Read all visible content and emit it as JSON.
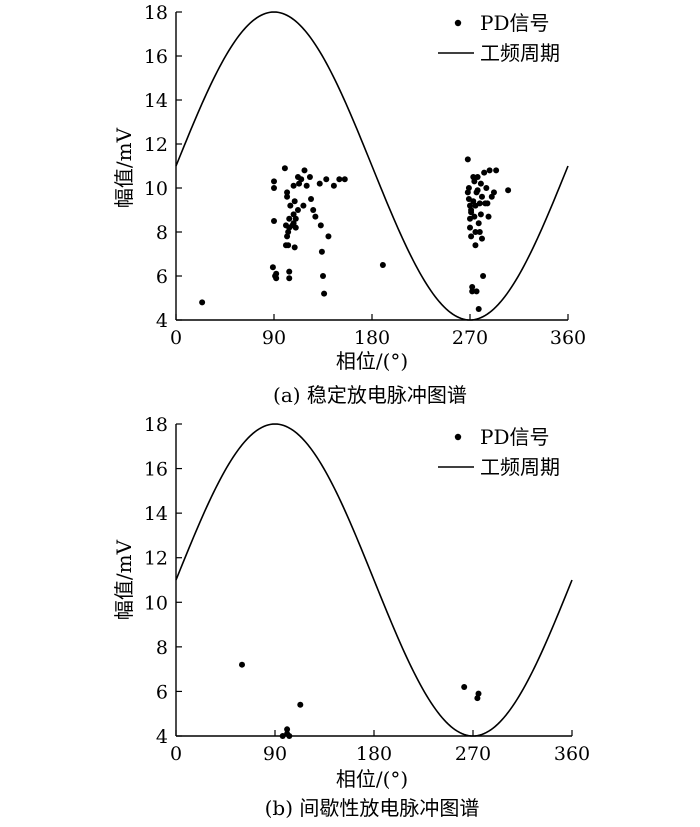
{
  "chart_data": [
    {
      "type": "scatter",
      "caption": "(a)  稳定放电脉冲图谱",
      "xlabel": "相位/(°)",
      "ylabel": "幅值/mV",
      "xlim": [
        0,
        360
      ],
      "ylim": [
        4,
        18
      ],
      "xticks": [
        "0",
        "90",
        "180",
        "270",
        "360"
      ],
      "yticks": [
        "4",
        "6",
        "8",
        "10",
        "12",
        "14",
        "16",
        "18"
      ],
      "legend": {
        "placement": "top-right",
        "items": [
          "PD信号",
          "工频周期"
        ]
      },
      "grid": false,
      "curve": {
        "name": "工频周期",
        "type": "sine",
        "center": 11,
        "amplitude": 7,
        "period": 360
      },
      "series": [
        {
          "name": "PD信号",
          "x": [
            24,
            89,
            90,
            90,
            90,
            91,
            92,
            92,
            100,
            101,
            101,
            102,
            102,
            102,
            103,
            103,
            104,
            104,
            104,
            104,
            105,
            107,
            108,
            108,
            108,
            109,
            109,
            110,
            110,
            112,
            112,
            113,
            115,
            117,
            118,
            120,
            123,
            124,
            126,
            128,
            132,
            133,
            134,
            135,
            136,
            138,
            140,
            145,
            150,
            155,
            190,
            268,
            268,
            269,
            269,
            270,
            270,
            270,
            271,
            271,
            271,
            272,
            272,
            273,
            273,
            274,
            274,
            275,
            275,
            275,
            276,
            276,
            277,
            277,
            278,
            278,
            279,
            279,
            280,
            280,
            281,
            281,
            282,
            283,
            284,
            285,
            286,
            287,
            288,
            290,
            292,
            294,
            305
          ],
          "y": [
            4.8,
            6.4,
            10.3,
            10.0,
            8.5,
            6.0,
            5.9,
            6.1,
            10.9,
            7.4,
            8.3,
            7.8,
            9.8,
            9.6,
            8.0,
            7.4,
            8.6,
            8.2,
            5.9,
            6.2,
            9.2,
            8.3,
            8.4,
            10.1,
            8.8,
            7.3,
            9.4,
            8.2,
            8.6,
            9.0,
            10.5,
            10.2,
            10.4,
            9.2,
            10.8,
            10.1,
            10.5,
            9.5,
            9.0,
            8.7,
            10.2,
            8.3,
            7.1,
            6.0,
            5.2,
            10.4,
            7.8,
            10.1,
            10.4,
            10.4,
            6.5,
            11.3,
            9.8,
            10.0,
            9.5,
            9.2,
            8.6,
            8.2,
            9.0,
            8.9,
            7.8,
            5.5,
            5.3,
            10.5,
            9.4,
            8.7,
            10.3,
            7.4,
            9.2,
            8.0,
            9.8,
            5.3,
            9.9,
            10.5,
            4.5,
            8.4,
            9.3,
            8.0,
            10.2,
            8.8,
            9.6,
            7.7,
            6.0,
            10.7,
            9.3,
            10.0,
            9.3,
            8.7,
            10.8,
            9.6,
            9.8,
            10.8,
            9.9
          ]
        }
      ]
    },
    {
      "type": "scatter",
      "caption": "(b)  间歇性放电脉冲图谱",
      "xlabel": "相位/(°)",
      "ylabel": "幅值/mV",
      "xlim": [
        0,
        360
      ],
      "ylim": [
        4,
        18
      ],
      "xticks": [
        "0",
        "90",
        "180",
        "270",
        "360"
      ],
      "yticks": [
        "4",
        "6",
        "8",
        "10",
        "12",
        "14",
        "16",
        "18"
      ],
      "legend": {
        "placement": "top-right",
        "items": [
          "PD信号",
          "工频周期"
        ]
      },
      "grid": false,
      "curve": {
        "name": "工频周期",
        "type": "sine",
        "center": 11,
        "amplitude": 7,
        "period": 360
      },
      "series": [
        {
          "name": "PD信号",
          "x": [
            60,
            97,
            101,
            101,
            103,
            113,
            262,
            274,
            275
          ],
          "y": [
            7.2,
            4.0,
            4.3,
            4.1,
            4.0,
            5.4,
            6.2,
            5.7,
            5.9
          ]
        }
      ]
    }
  ]
}
